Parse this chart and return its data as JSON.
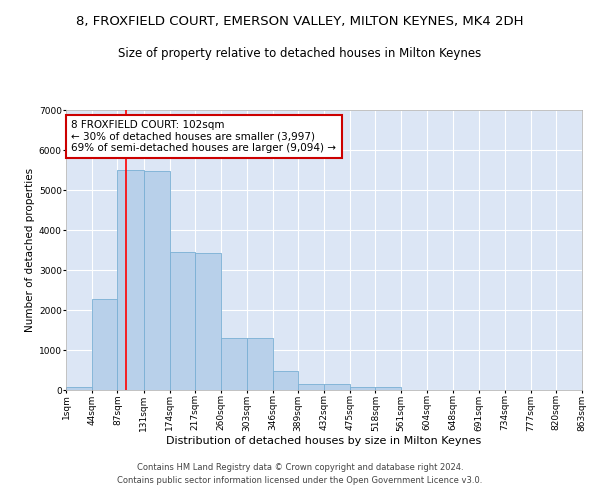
{
  "title": "8, FROXFIELD COURT, EMERSON VALLEY, MILTON KEYNES, MK4 2DH",
  "subtitle": "Size of property relative to detached houses in Milton Keynes",
  "xlabel": "Distribution of detached houses by size in Milton Keynes",
  "ylabel": "Number of detached properties",
  "bar_values": [
    80,
    2270,
    5500,
    5480,
    3450,
    3420,
    1310,
    1290,
    470,
    160,
    140,
    80,
    80,
    0,
    0,
    0,
    0,
    0,
    0,
    0
  ],
  "bin_edges": [
    1,
    44,
    87,
    131,
    174,
    217,
    260,
    303,
    346,
    389,
    432,
    475,
    518,
    561,
    604,
    648,
    691,
    734,
    777,
    820,
    863
  ],
  "tick_labels": [
    "1sqm",
    "44sqm",
    "87sqm",
    "131sqm",
    "174sqm",
    "217sqm",
    "260sqm",
    "303sqm",
    "346sqm",
    "389sqm",
    "432sqm",
    "475sqm",
    "518sqm",
    "561sqm",
    "604sqm",
    "648sqm",
    "691sqm",
    "734sqm",
    "777sqm",
    "820sqm",
    "863sqm"
  ],
  "bar_facecolor": "#b8d0ea",
  "bar_edgecolor": "#7aafd4",
  "bar_linewidth": 0.6,
  "grid_color": "#ffffff",
  "background_color": "#dce6f5",
  "ylim": [
    0,
    7000
  ],
  "yticks": [
    0,
    1000,
    2000,
    3000,
    4000,
    5000,
    6000,
    7000
  ],
  "red_line_x": 102,
  "annotation_text": "8 FROXFIELD COURT: 102sqm\n← 30% of detached houses are smaller (3,997)\n69% of semi-detached houses are larger (9,094) →",
  "annotation_box_color": "#ffffff",
  "annotation_box_edgecolor": "#cc0000",
  "footer_line1": "Contains HM Land Registry data © Crown copyright and database right 2024.",
  "footer_line2": "Contains public sector information licensed under the Open Government Licence v3.0.",
  "title_fontsize": 9.5,
  "subtitle_fontsize": 8.5,
  "xlabel_fontsize": 8,
  "ylabel_fontsize": 7.5,
  "tick_fontsize": 6.5,
  "annotation_fontsize": 7.5,
  "footer_fontsize": 6
}
